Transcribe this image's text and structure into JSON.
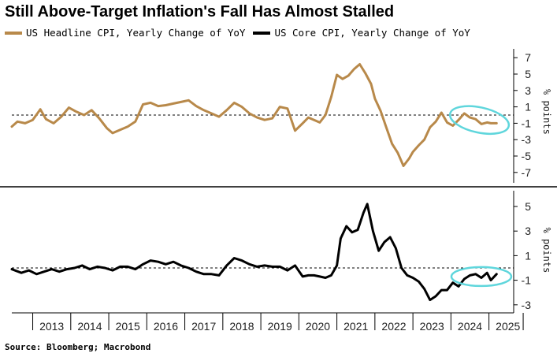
{
  "title": "Still Above-Target Inflation's Fall Has Almost Stalled",
  "source": "Source: Bloomberg; Macrobond",
  "colors": {
    "headline": "#b8894a",
    "core": "#000000",
    "highlight": "#5fd6dc",
    "grid": "#000000"
  },
  "chart_data": [
    {
      "type": "line",
      "name": "top-panel",
      "x_unit": "year",
      "ylabel": "% points",
      "ylim": [
        -8,
        8
      ],
      "yticks": [
        7,
        5,
        3,
        1,
        -1,
        -3,
        -5,
        -7
      ],
      "reference_line": 0,
      "series": [
        {
          "name": "US Headline CPI, Yearly Change of YoY",
          "color": "#b8894a",
          "x": [
            2012.45,
            2012.6,
            2012.8,
            2013.0,
            2013.2,
            2013.35,
            2013.55,
            2013.75,
            2013.95,
            2014.15,
            2014.35,
            2014.55,
            2014.75,
            2014.95,
            2015.1,
            2015.3,
            2015.5,
            2015.7,
            2015.9,
            2016.1,
            2016.3,
            2016.5,
            2016.7,
            2016.9,
            2017.1,
            2017.3,
            2017.5,
            2017.7,
            2017.9,
            2018.1,
            2018.3,
            2018.5,
            2018.7,
            2018.9,
            2019.1,
            2019.3,
            2019.5,
            2019.7,
            2019.9,
            2020.1,
            2020.25,
            2020.4,
            2020.55,
            2020.7,
            2020.85,
            2021.0,
            2021.15,
            2021.3,
            2021.45,
            2021.6,
            2021.75,
            2021.9,
            2022.0,
            2022.15,
            2022.3,
            2022.45,
            2022.6,
            2022.75,
            2022.9,
            2023.0,
            2023.15,
            2023.3,
            2023.45,
            2023.6,
            2023.75,
            2023.9,
            2024.05,
            2024.2,
            2024.35,
            2024.5,
            2024.65,
            2024.8,
            2024.95,
            2025.05,
            2025.2
          ],
          "y": [
            -1.4,
            -0.8,
            -1.0,
            -0.6,
            0.7,
            -0.5,
            -1.0,
            -0.2,
            0.9,
            0.4,
            0.0,
            0.6,
            -0.4,
            -1.6,
            -2.2,
            -1.8,
            -1.4,
            -0.8,
            1.3,
            1.5,
            1.1,
            1.2,
            1.4,
            1.6,
            1.8,
            1.1,
            0.6,
            0.2,
            -0.2,
            0.6,
            1.5,
            1.0,
            0.2,
            -0.3,
            -0.6,
            -0.4,
            1.0,
            0.8,
            -1.9,
            -1.0,
            -0.3,
            -0.6,
            -0.9,
            0.0,
            2.2,
            4.9,
            4.4,
            4.8,
            5.6,
            6.2,
            5.1,
            3.8,
            2.0,
            0.5,
            -1.5,
            -3.5,
            -4.6,
            -6.2,
            -5.3,
            -4.5,
            -3.7,
            -3.0,
            -1.5,
            -0.8,
            0.3,
            -0.9,
            -1.3,
            -0.6,
            0.2,
            -0.3,
            -0.5,
            -1.1,
            -0.9,
            -1.0,
            -1.0
          ]
        }
      ]
    },
    {
      "type": "line",
      "name": "bottom-panel",
      "x_unit": "year",
      "ylabel": "% points",
      "ylim": [
        -4,
        6.5
      ],
      "yticks": [
        5,
        3,
        1,
        -1,
        -3
      ],
      "reference_line": 0,
      "xticks": [
        "2013",
        "2014",
        "2015",
        "2016",
        "2017",
        "2018",
        "2019",
        "2020",
        "2021",
        "2022",
        "2023",
        "2024",
        "2025"
      ],
      "series": [
        {
          "name": "US Core CPI, Yearly Change of YoY",
          "color": "#000000",
          "x": [
            2012.45,
            2012.7,
            2012.9,
            2013.1,
            2013.3,
            2013.5,
            2013.7,
            2013.9,
            2014.1,
            2014.3,
            2014.5,
            2014.7,
            2014.9,
            2015.1,
            2015.3,
            2015.5,
            2015.7,
            2015.9,
            2016.1,
            2016.3,
            2016.5,
            2016.7,
            2016.9,
            2017.1,
            2017.3,
            2017.5,
            2017.7,
            2017.9,
            2018.1,
            2018.3,
            2018.5,
            2018.7,
            2018.9,
            2019.1,
            2019.3,
            2019.5,
            2019.7,
            2019.9,
            2020.1,
            2020.25,
            2020.4,
            2020.55,
            2020.7,
            2020.85,
            2021.0,
            2021.1,
            2021.25,
            2021.4,
            2021.55,
            2021.7,
            2021.8,
            2021.95,
            2022.1,
            2022.25,
            2022.4,
            2022.55,
            2022.7,
            2022.85,
            2023.0,
            2023.15,
            2023.3,
            2023.45,
            2023.6,
            2023.75,
            2023.9,
            2024.05,
            2024.2,
            2024.35,
            2024.5,
            2024.65,
            2024.8,
            2024.95,
            2025.05,
            2025.2
          ],
          "y": [
            -0.1,
            -0.4,
            -0.2,
            -0.5,
            -0.3,
            -0.1,
            -0.3,
            -0.1,
            0.0,
            0.2,
            -0.1,
            0.1,
            0.0,
            -0.2,
            0.1,
            0.1,
            -0.1,
            0.3,
            0.6,
            0.5,
            0.3,
            0.5,
            0.2,
            0.0,
            -0.3,
            -0.5,
            -0.5,
            -0.6,
            0.2,
            0.8,
            0.6,
            0.3,
            0.1,
            0.2,
            0.1,
            0.1,
            -0.2,
            0.2,
            -0.7,
            -0.6,
            -0.6,
            -0.7,
            -0.8,
            -0.6,
            0.2,
            2.4,
            3.4,
            2.9,
            3.1,
            4.5,
            5.2,
            3.0,
            1.4,
            2.1,
            2.5,
            1.6,
            0.0,
            -0.6,
            -0.8,
            -1.1,
            -1.7,
            -2.6,
            -2.3,
            -1.8,
            -1.8,
            -1.2,
            -1.5,
            -0.9,
            -0.6,
            -0.5,
            -0.8,
            -0.4,
            -1.0,
            -0.5
          ]
        }
      ]
    }
  ]
}
